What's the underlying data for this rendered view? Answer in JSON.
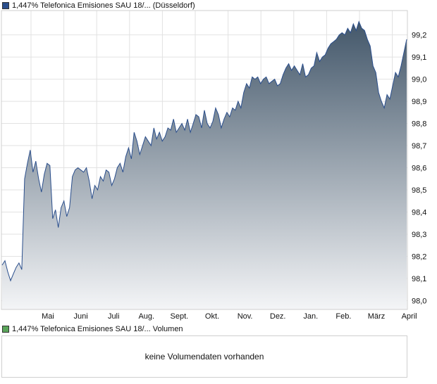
{
  "price_legend": {
    "label": "1,447% Telefonica Emisiones SAU 18/... (Düsseldorf)",
    "color": "#2a4e8c"
  },
  "volume_legend": {
    "label": "1,447% Telefonica Emisiones SAU 18/... Volumen",
    "color": "#5aa55a"
  },
  "volume_message": "keine Volumendaten vorhanden",
  "chart_data": {
    "type": "area",
    "title": "",
    "xlabel": "",
    "ylabel": "",
    "ylim": [
      97.96,
      99.31
    ],
    "yticks": [
      "98,0",
      "98,1",
      "98,2",
      "98,3",
      "98,4",
      "98,5",
      "98,6",
      "98,7",
      "98,8",
      "98,9",
      "99,0",
      "99,1",
      "99,2"
    ],
    "xticks": [
      "Mai",
      "Juni",
      "Juli",
      "Aug.",
      "Sept.",
      "Okt.",
      "Nov.",
      "Dez.",
      "Jan.",
      "Feb.",
      "März",
      "April"
    ],
    "grid": true,
    "colors": {
      "line": "#2a4e8c",
      "fill_top": "#43576a",
      "fill_bottom": "#f4f5f7"
    },
    "series": [
      {
        "values": [
          98.16,
          98.18,
          98.13,
          98.09,
          98.12,
          98.15,
          98.17,
          98.14,
          98.55,
          98.62,
          98.68,
          98.58,
          98.63,
          98.55,
          98.49,
          98.57,
          98.62,
          98.61,
          98.37,
          98.41,
          98.33,
          98.42,
          98.45,
          98.38,
          98.42,
          98.56,
          98.59,
          98.6,
          98.59,
          98.58,
          98.6,
          98.54,
          98.46,
          98.52,
          98.5,
          98.56,
          98.54,
          98.59,
          98.58,
          98.52,
          98.55,
          98.6,
          98.62,
          98.58,
          98.65,
          98.69,
          98.64,
          98.76,
          98.72,
          98.66,
          98.7,
          98.74,
          98.72,
          98.7,
          98.78,
          98.73,
          98.76,
          98.72,
          98.74,
          98.78,
          98.77,
          98.82,
          98.76,
          98.78,
          98.8,
          98.77,
          98.82,
          98.76,
          98.8,
          98.84,
          98.83,
          98.78,
          98.86,
          98.8,
          98.78,
          98.81,
          98.87,
          98.84,
          98.78,
          98.82,
          98.85,
          98.83,
          98.87,
          98.86,
          98.9,
          98.87,
          98.94,
          98.98,
          98.96,
          99.01,
          99.0,
          99.01,
          98.98,
          99.0,
          99.01,
          98.98,
          98.99,
          99.0,
          98.97,
          98.98,
          99.02,
          99.05,
          99.07,
          99.04,
          99.06,
          99.04,
          99.02,
          99.07,
          99.01,
          99.02,
          99.05,
          99.06,
          99.12,
          99.08,
          99.1,
          99.11,
          99.14,
          99.16,
          99.17,
          99.18,
          99.2,
          99.21,
          99.2,
          99.23,
          99.21,
          99.25,
          99.22,
          99.26,
          99.23,
          99.22,
          99.18,
          99.15,
          99.06,
          99.03,
          98.94,
          98.9,
          98.87,
          98.93,
          98.91,
          98.97,
          99.03,
          99.01,
          99.06,
          99.12,
          99.18
        ]
      }
    ]
  }
}
